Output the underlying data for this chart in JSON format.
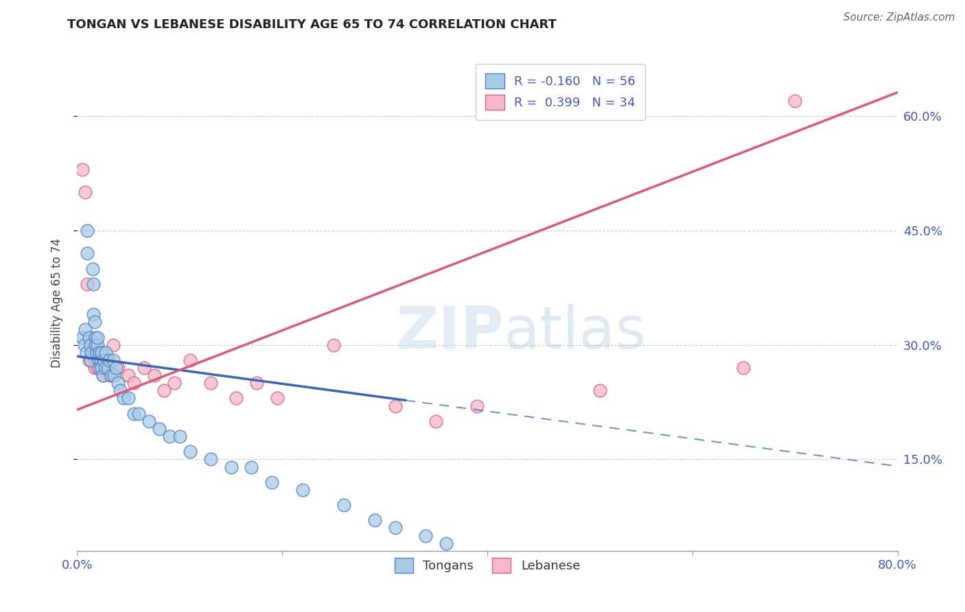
{
  "title": "TONGAN VS LEBANESE DISABILITY AGE 65 TO 74 CORRELATION CHART",
  "source": "Source: ZipAtlas.com",
  "ylabel": "Disability Age 65 to 74",
  "xmin": 0.0,
  "xmax": 0.8,
  "ymin": 0.03,
  "ymax": 0.68,
  "yticks": [
    0.15,
    0.3,
    0.45,
    0.6
  ],
  "ytick_labels": [
    "15.0%",
    "30.0%",
    "45.0%",
    "60.0%"
  ],
  "xticks": [
    0.0,
    0.2,
    0.4,
    0.6,
    0.8
  ],
  "xtick_labels": [
    "0.0%",
    "",
    "",
    "",
    "80.0%"
  ],
  "grid_color": "#cccccc",
  "background_color": "#ffffff",
  "tongan_color": "#a8cce8",
  "lebanese_color": "#f5b8cc",
  "tongan_edge_color": "#5580c0",
  "lebanese_edge_color": "#d86080",
  "tongan_line_color": "#3a65b5",
  "lebanese_line_color": "#e05878",
  "R_tongan": -0.16,
  "N_tongan": 56,
  "R_lebanese": 0.399,
  "N_lebanese": 34,
  "legend_label_tongan": "Tongans",
  "legend_label_lebanese": "Lebanese",
  "watermark_zip": "ZIP",
  "watermark_atlas": "atlas",
  "title_color": "#222222",
  "tick_label_color": "#4455cc",
  "tongan_line_x_solid_end": 0.32,
  "lebanese_line_intercept": 0.215,
  "lebanese_line_slope": 0.52,
  "tongan_line_intercept": 0.285,
  "tongan_line_slope": -0.18,
  "tongan_x": [
    0.005,
    0.007,
    0.008,
    0.009,
    0.01,
    0.01,
    0.012,
    0.013,
    0.013,
    0.014,
    0.015,
    0.016,
    0.016,
    0.017,
    0.018,
    0.018,
    0.019,
    0.02,
    0.02,
    0.021,
    0.022,
    0.022,
    0.023,
    0.024,
    0.024,
    0.025,
    0.026,
    0.027,
    0.028,
    0.03,
    0.031,
    0.033,
    0.035,
    0.036,
    0.038,
    0.04,
    0.042,
    0.045,
    0.05,
    0.055,
    0.06,
    0.07,
    0.08,
    0.09,
    0.1,
    0.11,
    0.13,
    0.15,
    0.17,
    0.19,
    0.22,
    0.26,
    0.29,
    0.31,
    0.34,
    0.36
  ],
  "tongan_y": [
    0.31,
    0.3,
    0.32,
    0.29,
    0.45,
    0.42,
    0.31,
    0.3,
    0.28,
    0.29,
    0.4,
    0.38,
    0.34,
    0.33,
    0.31,
    0.3,
    0.29,
    0.3,
    0.31,
    0.28,
    0.29,
    0.27,
    0.28,
    0.27,
    0.29,
    0.26,
    0.28,
    0.27,
    0.29,
    0.27,
    0.28,
    0.26,
    0.28,
    0.26,
    0.27,
    0.25,
    0.24,
    0.23,
    0.23,
    0.21,
    0.21,
    0.2,
    0.19,
    0.18,
    0.18,
    0.16,
    0.15,
    0.14,
    0.14,
    0.12,
    0.11,
    0.09,
    0.07,
    0.06,
    0.05,
    0.04
  ],
  "lebanese_x": [
    0.005,
    0.008,
    0.01,
    0.012,
    0.015,
    0.017,
    0.018,
    0.02,
    0.022,
    0.024,
    0.025,
    0.028,
    0.03,
    0.032,
    0.035,
    0.04,
    0.05,
    0.055,
    0.065,
    0.075,
    0.085,
    0.095,
    0.11,
    0.13,
    0.155,
    0.175,
    0.195,
    0.25,
    0.31,
    0.35,
    0.39,
    0.51,
    0.65,
    0.7
  ],
  "lebanese_y": [
    0.53,
    0.5,
    0.38,
    0.28,
    0.29,
    0.27,
    0.28,
    0.27,
    0.28,
    0.29,
    0.26,
    0.27,
    0.28,
    0.26,
    0.3,
    0.27,
    0.26,
    0.25,
    0.27,
    0.26,
    0.24,
    0.25,
    0.28,
    0.25,
    0.23,
    0.25,
    0.23,
    0.3,
    0.22,
    0.2,
    0.22,
    0.24,
    0.27,
    0.62
  ]
}
